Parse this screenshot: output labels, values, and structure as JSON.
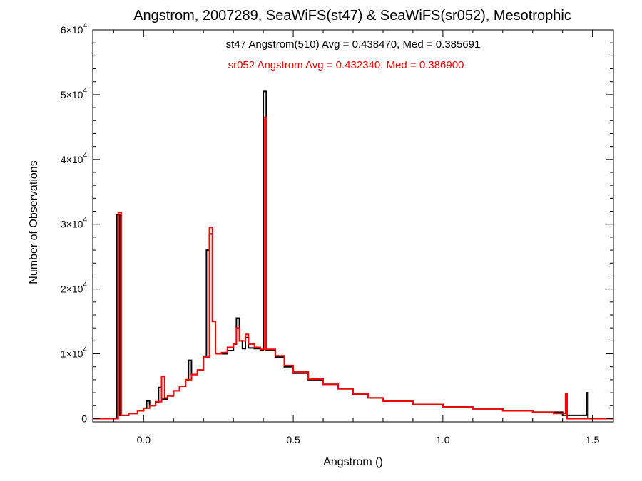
{
  "chart_data": {
    "type": "line",
    "step": true,
    "title": "Angstrom, 2007289, SeaWiFS(st47) & SeaWiFS(sr052), Mesotrophic",
    "xlabel": "Angstrom ()",
    "ylabel": "Number of Observations",
    "xlim": [
      -0.17,
      1.57
    ],
    "ylim": [
      -500,
      60000
    ],
    "xticks": [
      0.0,
      0.5,
      1.0,
      1.5
    ],
    "xtick_labels": [
      "0.0",
      "0.5",
      "1.0",
      "1.5"
    ],
    "yticks": [
      0,
      10000,
      20000,
      30000,
      40000,
      50000,
      60000
    ],
    "ytick_labels": [
      {
        "base": "0",
        "exp": ""
      },
      {
        "base": "1×10",
        "exp": "4"
      },
      {
        "base": "2×10",
        "exp": "4"
      },
      {
        "base": "3×10",
        "exp": "4"
      },
      {
        "base": "4×10",
        "exp": "4"
      },
      {
        "base": "5×10",
        "exp": "4"
      },
      {
        "base": "6×10",
        "exp": "4"
      }
    ],
    "annotations": [
      {
        "text": "st47 Angstrom(510) Avg = 0.438470, Med = 0.385691",
        "color": "#000000"
      },
      {
        "text": "sr052 Angstrom Avg = 0.432340, Med = 0.386900",
        "color": "#ff0000"
      }
    ],
    "series": [
      {
        "color": "#000000",
        "points": [
          [
            -0.17,
            0
          ],
          [
            -0.095,
            0
          ],
          [
            -0.09,
            31500
          ],
          [
            -0.08,
            500
          ],
          [
            -0.05,
            800
          ],
          [
            -0.02,
            1200
          ],
          [
            0.0,
            1600
          ],
          [
            0.01,
            2700
          ],
          [
            0.02,
            2000
          ],
          [
            0.04,
            2500
          ],
          [
            0.05,
            4800
          ],
          [
            0.06,
            3000
          ],
          [
            0.08,
            3500
          ],
          [
            0.1,
            4300
          ],
          [
            0.12,
            5000
          ],
          [
            0.14,
            6000
          ],
          [
            0.15,
            9000
          ],
          [
            0.16,
            6800
          ],
          [
            0.18,
            7500
          ],
          [
            0.2,
            9500
          ],
          [
            0.21,
            26000
          ],
          [
            0.22,
            28500
          ],
          [
            0.23,
            15000
          ],
          [
            0.24,
            10000
          ],
          [
            0.26,
            10000
          ],
          [
            0.28,
            10500
          ],
          [
            0.3,
            11500
          ],
          [
            0.31,
            15500
          ],
          [
            0.32,
            12000
          ],
          [
            0.33,
            10800
          ],
          [
            0.34,
            12500
          ],
          [
            0.35,
            10900
          ],
          [
            0.37,
            10800
          ],
          [
            0.39,
            10600
          ],
          [
            0.4,
            50500
          ],
          [
            0.41,
            10600
          ],
          [
            0.44,
            9500
          ],
          [
            0.47,
            8000
          ],
          [
            0.5,
            7000
          ],
          [
            0.55,
            6000
          ],
          [
            0.6,
            5300
          ],
          [
            0.65,
            4600
          ],
          [
            0.7,
            3800
          ],
          [
            0.75,
            3200
          ],
          [
            0.8,
            2700
          ],
          [
            0.9,
            2200
          ],
          [
            1.0,
            1800
          ],
          [
            1.1,
            1500
          ],
          [
            1.2,
            1200
          ],
          [
            1.3,
            1000
          ],
          [
            1.37,
            1000
          ],
          [
            1.4,
            500
          ],
          [
            1.48,
            4000
          ],
          [
            1.485,
            0
          ],
          [
            1.57,
            0
          ]
        ]
      },
      {
        "color": "#ff0000",
        "points": [
          [
            -0.17,
            0
          ],
          [
            -0.09,
            0
          ],
          [
            -0.085,
            31800
          ],
          [
            -0.075,
            500
          ],
          [
            -0.05,
            800
          ],
          [
            -0.02,
            1200
          ],
          [
            0.0,
            1600
          ],
          [
            0.02,
            2000
          ],
          [
            0.04,
            2600
          ],
          [
            0.06,
            6500
          ],
          [
            0.07,
            3200
          ],
          [
            0.08,
            3500
          ],
          [
            0.1,
            4300
          ],
          [
            0.12,
            5000
          ],
          [
            0.14,
            6000
          ],
          [
            0.16,
            6800
          ],
          [
            0.18,
            7500
          ],
          [
            0.2,
            9500
          ],
          [
            0.22,
            29500
          ],
          [
            0.23,
            15000
          ],
          [
            0.24,
            10000
          ],
          [
            0.26,
            10200
          ],
          [
            0.28,
            11000
          ],
          [
            0.3,
            11500
          ],
          [
            0.31,
            14000
          ],
          [
            0.32,
            12000
          ],
          [
            0.34,
            13000
          ],
          [
            0.35,
            11500
          ],
          [
            0.37,
            11000
          ],
          [
            0.39,
            10700
          ],
          [
            0.405,
            46500
          ],
          [
            0.41,
            10700
          ],
          [
            0.44,
            9700
          ],
          [
            0.47,
            8200
          ],
          [
            0.5,
            7200
          ],
          [
            0.55,
            6100
          ],
          [
            0.6,
            5300
          ],
          [
            0.65,
            4600
          ],
          [
            0.7,
            3800
          ],
          [
            0.75,
            3200
          ],
          [
            0.8,
            2700
          ],
          [
            0.9,
            2200
          ],
          [
            1.0,
            1800
          ],
          [
            1.1,
            1500
          ],
          [
            1.2,
            1200
          ],
          [
            1.3,
            1000
          ],
          [
            1.37,
            800
          ],
          [
            1.41,
            3800
          ],
          [
            1.415,
            0
          ],
          [
            1.57,
            0
          ]
        ]
      }
    ]
  }
}
